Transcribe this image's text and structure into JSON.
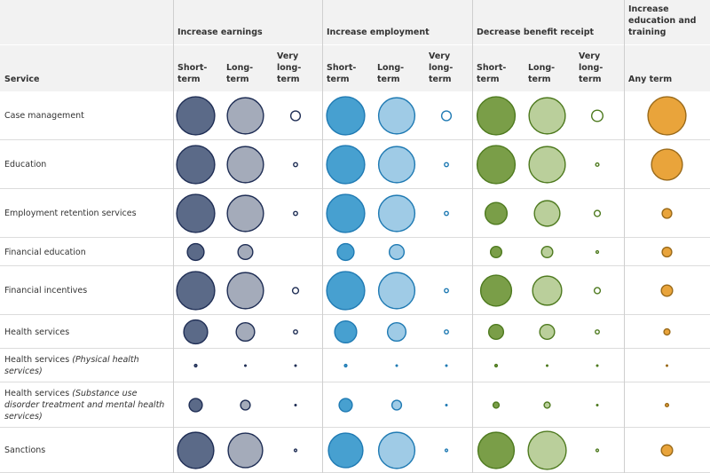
{
  "table": {
    "groups": [
      "Increase earnings",
      "Increase employment",
      "Decrease benefit receipt",
      "Increase education and training"
    ],
    "columns": [
      "Service",
      "Short-term",
      "Long-term",
      "Very long-term",
      "Short-term",
      "Long-term",
      "Very long-term",
      "Short-term",
      "Long-term",
      "Very long-term",
      "Any term"
    ],
    "fills": [
      "#5b6a88",
      "#a4abba",
      "#ffffff",
      "#47a0d0",
      "#9fcbe6",
      "#ffffff",
      "#7a9e48",
      "#bacf9b",
      "#ffffff",
      "#e9a43b"
    ],
    "strokes": [
      "#1f2e55",
      "#1f2e55",
      "#1f2e55",
      "#1f7ab3",
      "#1f7ab3",
      "#1f7ab3",
      "#4e7a1f",
      "#4e7a1f",
      "#4e7a1f",
      "#9a6a1a"
    ],
    "rows": [
      {
        "service": "Case management",
        "values": [
          121,
          110,
          9,
          121,
          110,
          9,
          121,
          110,
          12,
          121
        ]
      },
      {
        "service": "Education",
        "values": [
          121,
          110,
          2,
          121,
          110,
          2,
          121,
          110,
          1.5,
          81
        ]
      },
      {
        "service": "Employment retention services",
        "values": [
          121,
          110,
          2,
          121,
          110,
          2,
          42,
          56,
          4,
          9
        ]
      },
      {
        "service": "Financial education",
        "values": [
          25,
          20,
          null,
          25,
          20,
          null,
          12,
          12,
          1,
          9
        ]
      },
      {
        "service": "Financial incentives",
        "values": [
          121,
          110,
          4,
          121,
          110,
          2,
          81,
          72,
          4,
          12
        ]
      },
      {
        "service": "Health services",
        "values": [
          49,
          30,
          2,
          42,
          30,
          2,
          20,
          20,
          2,
          4
        ]
      },
      {
        "service": "Health services",
        "note": "(Physical health services)",
        "values": [
          1,
          0.5,
          0.5,
          1,
          0.5,
          0.5,
          1,
          0.5,
          0.5,
          0.5
        ]
      },
      {
        "service": "Health services",
        "note": "(Substance use disorder treatment and mental health services)",
        "values": [
          16,
          9,
          0.5,
          16,
          9,
          0.5,
          4,
          4,
          0.5,
          1.5
        ]
      },
      {
        "service": "Sanctions",
        "values": [
          110,
          100,
          1,
          100,
          110,
          1,
          110,
          121,
          1,
          12
        ]
      }
    ]
  }
}
